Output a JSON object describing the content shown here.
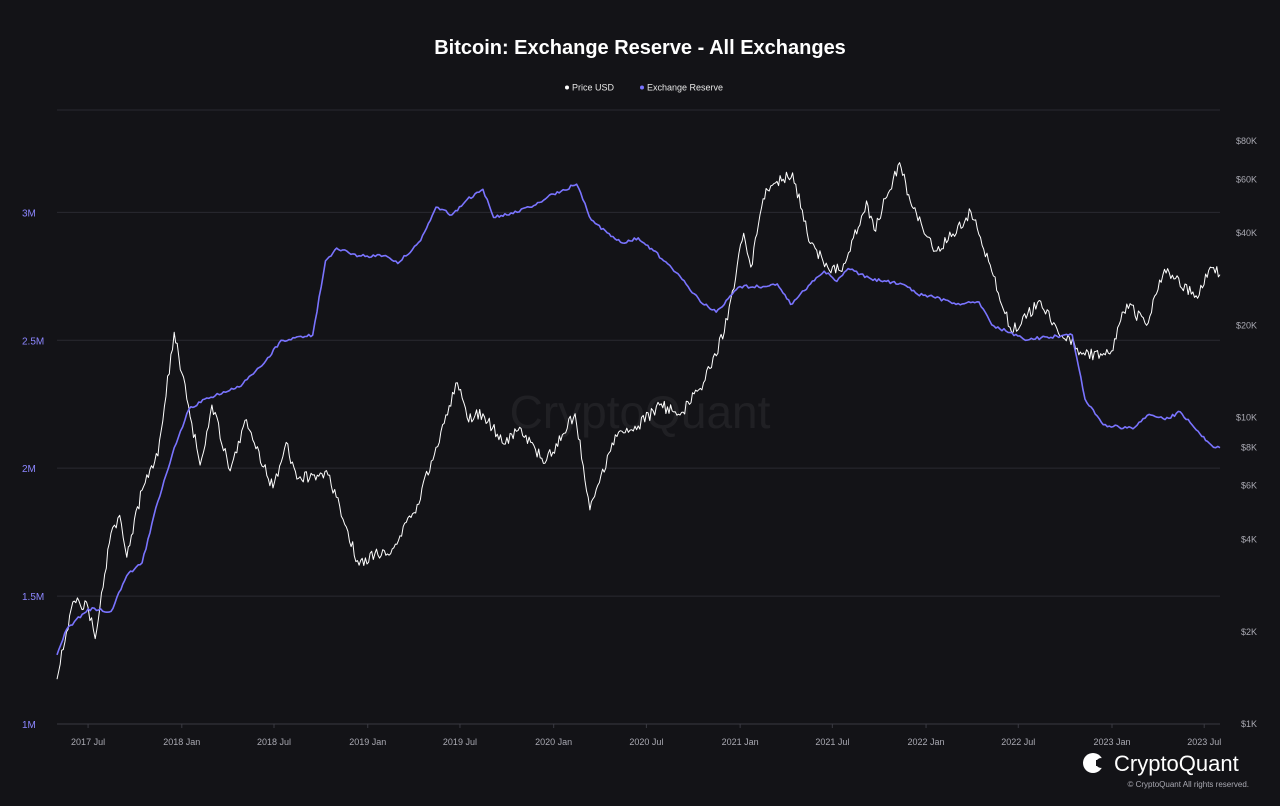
{
  "chart_data": {
    "type": "line",
    "title": "Bitcoin: Exchange Reserve - All Exchanges",
    "legend": {
      "placement": "top-center",
      "entries": [
        "Price USD",
        "Exchange Reserve"
      ]
    },
    "x_ticks": [
      "2017 Jul",
      "2018 Jan",
      "2018 Jul",
      "2019 Jan",
      "2019 Jul",
      "2020 Jan",
      "2020 Jul",
      "2021 Jan",
      "2021 Jul",
      "2022 Jan",
      "2022 Jul",
      "2023 Jan",
      "2023 Jul"
    ],
    "y_left": {
      "ticks": [
        "1M",
        "1.5M",
        "2M",
        "2.5M",
        "3M"
      ],
      "values": [
        1000000,
        1500000,
        2000000,
        2500000,
        3000000
      ],
      "range": [
        1000000,
        3400000
      ]
    },
    "y_right": {
      "ticks": [
        "$1K",
        "$2K",
        "$4K",
        "$6K",
        "$8K",
        "$10K",
        "$20K",
        "$40K",
        "$60K",
        "$80K"
      ],
      "values": [
        1000,
        2000,
        4000,
        6000,
        8000,
        10000,
        20000,
        40000,
        60000,
        80000
      ],
      "scale": "log",
      "range": [
        1000,
        80000
      ]
    },
    "grid": "horizontal",
    "series": [
      {
        "name": "Price USD",
        "color": "#ffffff",
        "axis": "right",
        "points": [
          [
            "2017-05-01",
            1400
          ],
          [
            "2017-06-01",
            2500
          ],
          [
            "2017-07-01",
            2400
          ],
          [
            "2017-07-15",
            1900
          ],
          [
            "2017-08-15",
            4200
          ],
          [
            "2017-09-01",
            4800
          ],
          [
            "2017-09-15",
            3500
          ],
          [
            "2017-10-15",
            5800
          ],
          [
            "2017-11-15",
            7500
          ],
          [
            "2017-12-17",
            19000
          ],
          [
            "2018-01-01",
            14000
          ],
          [
            "2018-02-06",
            7000
          ],
          [
            "2018-03-01",
            11000
          ],
          [
            "2018-04-06",
            6700
          ],
          [
            "2018-05-05",
            9800
          ],
          [
            "2018-06-29",
            5900
          ],
          [
            "2018-07-25",
            8300
          ],
          [
            "2018-08-15",
            6300
          ],
          [
            "2018-09-15",
            6500
          ],
          [
            "2018-10-15",
            6500
          ],
          [
            "2018-11-20",
            4400
          ],
          [
            "2018-12-15",
            3300
          ],
          [
            "2019-01-15",
            3600
          ],
          [
            "2019-02-15",
            3600
          ],
          [
            "2019-04-02",
            4900
          ],
          [
            "2019-05-15",
            8000
          ],
          [
            "2019-06-26",
            13000
          ],
          [
            "2019-07-15",
            10000
          ],
          [
            "2019-08-15",
            10300
          ],
          [
            "2019-09-25",
            8200
          ],
          [
            "2019-10-26",
            9300
          ],
          [
            "2019-12-15",
            7100
          ],
          [
            "2020-02-12",
            10300
          ],
          [
            "2020-03-12",
            5000
          ],
          [
            "2020-05-01",
            8800
          ],
          [
            "2020-06-15",
            9400
          ],
          [
            "2020-07-27",
            11000
          ],
          [
            "2020-09-05",
            10200
          ],
          [
            "2020-10-21",
            13000
          ],
          [
            "2020-12-01",
            19000
          ],
          [
            "2021-01-08",
            40000
          ],
          [
            "2021-01-22",
            31000
          ],
          [
            "2021-02-21",
            56000
          ],
          [
            "2021-04-14",
            63000
          ],
          [
            "2021-05-19",
            37000
          ],
          [
            "2021-06-22",
            31000
          ],
          [
            "2021-07-20",
            30000
          ],
          [
            "2021-09-06",
            51000
          ],
          [
            "2021-09-21",
            41000
          ],
          [
            "2021-11-10",
            68000
          ],
          [
            "2021-12-04",
            49000
          ],
          [
            "2022-01-22",
            35000
          ],
          [
            "2022-03-30",
            47000
          ],
          [
            "2022-05-10",
            30000
          ],
          [
            "2022-06-18",
            19000
          ],
          [
            "2022-08-14",
            24000
          ],
          [
            "2022-09-15",
            19500
          ],
          [
            "2022-11-09",
            16000
          ],
          [
            "2022-12-31",
            16500
          ],
          [
            "2023-01-30",
            23500
          ],
          [
            "2023-03-10",
            20000
          ],
          [
            "2023-04-14",
            30500
          ],
          [
            "2023-06-15",
            25000
          ],
          [
            "2023-07-13",
            31000
          ],
          [
            "2023-08-01",
            29300
          ]
        ]
      },
      {
        "name": "Exchange Reserve",
        "color": "#7a74ff",
        "axis": "left",
        "points": [
          [
            "2017-05-01",
            1270000
          ],
          [
            "2017-05-20",
            1370000
          ],
          [
            "2017-07-01",
            1450000
          ],
          [
            "2017-08-15",
            1440000
          ],
          [
            "2017-09-15",
            1580000
          ],
          [
            "2017-10-15",
            1630000
          ],
          [
            "2017-11-15",
            1870000
          ],
          [
            "2017-12-17",
            2080000
          ],
          [
            "2018-01-15",
            2230000
          ],
          [
            "2018-02-15",
            2270000
          ],
          [
            "2018-04-01",
            2300000
          ],
          [
            "2018-05-01",
            2330000
          ],
          [
            "2018-06-15",
            2420000
          ],
          [
            "2018-07-15",
            2500000
          ],
          [
            "2018-09-15",
            2520000
          ],
          [
            "2018-10-10",
            2810000
          ],
          [
            "2018-11-01",
            2860000
          ],
          [
            "2018-12-15",
            2830000
          ],
          [
            "2019-02-01",
            2830000
          ],
          [
            "2019-03-01",
            2800000
          ],
          [
            "2019-04-15",
            2890000
          ],
          [
            "2019-05-15",
            3020000
          ],
          [
            "2019-06-15",
            2990000
          ],
          [
            "2019-07-15",
            3050000
          ],
          [
            "2019-08-15",
            3090000
          ],
          [
            "2019-09-05",
            2980000
          ],
          [
            "2019-10-01",
            2990000
          ],
          [
            "2019-11-15",
            3020000
          ],
          [
            "2019-12-20",
            3060000
          ],
          [
            "2020-02-15",
            3110000
          ],
          [
            "2020-03-15",
            2970000
          ],
          [
            "2020-04-15",
            2920000
          ],
          [
            "2020-05-15",
            2880000
          ],
          [
            "2020-06-15",
            2900000
          ],
          [
            "2020-07-15",
            2850000
          ],
          [
            "2020-09-01",
            2760000
          ],
          [
            "2020-10-15",
            2650000
          ],
          [
            "2020-11-15",
            2610000
          ],
          [
            "2021-01-01",
            2710000
          ],
          [
            "2021-02-15",
            2710000
          ],
          [
            "2021-03-15",
            2720000
          ],
          [
            "2021-04-10",
            2640000
          ],
          [
            "2021-05-19",
            2720000
          ],
          [
            "2021-06-15",
            2770000
          ],
          [
            "2021-07-10",
            2730000
          ],
          [
            "2021-08-01",
            2780000
          ],
          [
            "2021-09-15",
            2740000
          ],
          [
            "2021-10-15",
            2730000
          ],
          [
            "2021-11-15",
            2720000
          ],
          [
            "2021-12-15",
            2680000
          ],
          [
            "2022-01-15",
            2670000
          ],
          [
            "2022-03-01",
            2640000
          ],
          [
            "2022-04-15",
            2650000
          ],
          [
            "2022-05-10",
            2560000
          ],
          [
            "2022-06-15",
            2530000
          ],
          [
            "2022-07-15",
            2500000
          ],
          [
            "2022-08-15",
            2510000
          ],
          [
            "2022-10-15",
            2520000
          ],
          [
            "2022-11-09",
            2270000
          ],
          [
            "2022-12-15",
            2170000
          ],
          [
            "2023-01-15",
            2160000
          ],
          [
            "2023-02-15",
            2160000
          ],
          [
            "2023-03-15",
            2210000
          ],
          [
            "2023-04-15",
            2190000
          ],
          [
            "2023-05-15",
            2220000
          ],
          [
            "2023-06-15",
            2150000
          ],
          [
            "2023-07-15",
            2090000
          ],
          [
            "2023-08-01",
            2080000
          ]
        ]
      }
    ]
  },
  "watermark": "CryptoQuant",
  "brand": {
    "name": "CryptoQuant",
    "copyright": "© CryptoQuant All rights reserved."
  }
}
